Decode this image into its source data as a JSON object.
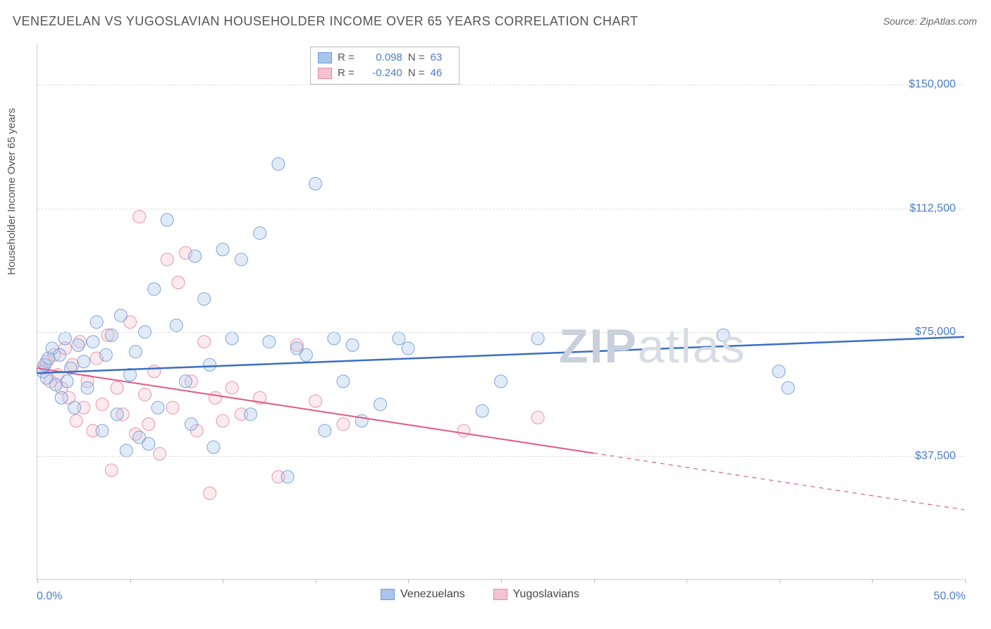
{
  "title": "VENEZUELAN VS YUGOSLAVIAN HOUSEHOLDER INCOME OVER 65 YEARS CORRELATION CHART",
  "source_label": "Source: ZipAtlas.com",
  "y_axis_title": "Householder Income Over 65 years",
  "watermark_a": "ZIP",
  "watermark_b": "atlas",
  "chart": {
    "type": "scatter",
    "background_color": "#ffffff",
    "grid_color": "#dddddd",
    "axis_color": "#cccccc",
    "xlim": [
      0,
      50
    ],
    "ylim": [
      0,
      162500
    ],
    "x_tick_positions": [
      0,
      5,
      10,
      15,
      20,
      25,
      30,
      35,
      40,
      45,
      50
    ],
    "x_tick_labels_visible": {
      "0": "0.0%",
      "50": "50.0%"
    },
    "y_gridlines": [
      37500,
      75000,
      112500,
      150000
    ],
    "y_tick_labels": [
      "$37,500",
      "$75,000",
      "$112,500",
      "$150,000"
    ],
    "marker_radius": 9,
    "marker_fill_opacity": 0.35,
    "marker_stroke_opacity": 0.9,
    "y_tick_label_color": "#4a7ec9",
    "x_tick_label_color": "#4a7ec9",
    "axis_label_fontsize": 16,
    "title_fontsize": 18
  },
  "series": {
    "venezuelans": {
      "label": "Venezuelans",
      "color_fill": "#a9c5ea",
      "color_stroke": "#6f9cd8",
      "trend_color": "#3b6fc4",
      "trend_width": 2.5,
      "trend_dash_after_x": 50,
      "trend": {
        "x1": 0,
        "y1": 62500,
        "x2": 50,
        "y2": 73500
      },
      "R": "0.098",
      "N": "63",
      "points": [
        [
          0.3,
          63000
        ],
        [
          0.4,
          65000
        ],
        [
          0.5,
          61000
        ],
        [
          0.6,
          67000
        ],
        [
          0.8,
          70000
        ],
        [
          1.0,
          59000
        ],
        [
          1.2,
          68000
        ],
        [
          1.3,
          55000
        ],
        [
          1.5,
          73000
        ],
        [
          1.6,
          60000
        ],
        [
          1.8,
          64000
        ],
        [
          2.0,
          52000
        ],
        [
          2.2,
          71000
        ],
        [
          2.5,
          66000
        ],
        [
          2.7,
          58000
        ],
        [
          3.0,
          72000
        ],
        [
          3.2,
          78000
        ],
        [
          3.5,
          45000
        ],
        [
          3.7,
          68000
        ],
        [
          4.0,
          74000
        ],
        [
          4.3,
          50000
        ],
        [
          4.5,
          80000
        ],
        [
          4.8,
          39000
        ],
        [
          5.0,
          62000
        ],
        [
          5.3,
          69000
        ],
        [
          5.5,
          43000
        ],
        [
          5.8,
          75000
        ],
        [
          6.0,
          41000
        ],
        [
          6.3,
          88000
        ],
        [
          6.5,
          52000
        ],
        [
          7.0,
          109000
        ],
        [
          7.5,
          77000
        ],
        [
          8.0,
          60000
        ],
        [
          8.3,
          47000
        ],
        [
          8.5,
          98000
        ],
        [
          9.0,
          85000
        ],
        [
          9.3,
          65000
        ],
        [
          9.5,
          40000
        ],
        [
          10.0,
          100000
        ],
        [
          10.5,
          73000
        ],
        [
          11.0,
          97000
        ],
        [
          11.5,
          50000
        ],
        [
          12.0,
          105000
        ],
        [
          12.5,
          72000
        ],
        [
          13.0,
          126000
        ],
        [
          13.5,
          31000
        ],
        [
          14.0,
          70000
        ],
        [
          14.5,
          68000
        ],
        [
          15.0,
          120000
        ],
        [
          15.5,
          45000
        ],
        [
          16.0,
          73000
        ],
        [
          16.5,
          60000
        ],
        [
          17.0,
          71000
        ],
        [
          17.5,
          48000
        ],
        [
          18.5,
          53000
        ],
        [
          19.5,
          73000
        ],
        [
          20.0,
          70000
        ],
        [
          24.0,
          51000
        ],
        [
          25.0,
          60000
        ],
        [
          27.0,
          73000
        ],
        [
          37.0,
          74000
        ],
        [
          40.0,
          63000
        ],
        [
          40.5,
          58000
        ]
      ]
    },
    "yugoslavians": {
      "label": "Yugoslavians",
      "color_fill": "#f4c3cf",
      "color_stroke": "#e889a2",
      "trend_color": "#e05a85",
      "trend_width": 2,
      "trend_dash_after_x": 30,
      "trend": {
        "x1": 0,
        "y1": 64000,
        "x2": 50,
        "y2": 21000
      },
      "R": "-0.240",
      "N": "46",
      "points": [
        [
          0.3,
          64000
        ],
        [
          0.5,
          66000
        ],
        [
          0.7,
          60000
        ],
        [
          0.9,
          68000
        ],
        [
          1.1,
          62000
        ],
        [
          1.3,
          58000
        ],
        [
          1.5,
          70000
        ],
        [
          1.7,
          55000
        ],
        [
          1.9,
          65000
        ],
        [
          2.1,
          48000
        ],
        [
          2.3,
          72000
        ],
        [
          2.5,
          52000
        ],
        [
          2.7,
          60000
        ],
        [
          3.0,
          45000
        ],
        [
          3.2,
          67000
        ],
        [
          3.5,
          53000
        ],
        [
          3.8,
          74000
        ],
        [
          4.0,
          33000
        ],
        [
          4.3,
          58000
        ],
        [
          4.6,
          50000
        ],
        [
          5.0,
          78000
        ],
        [
          5.3,
          44000
        ],
        [
          5.5,
          110000
        ],
        [
          5.8,
          56000
        ],
        [
          6.0,
          47000
        ],
        [
          6.3,
          63000
        ],
        [
          6.6,
          38000
        ],
        [
          7.0,
          97000
        ],
        [
          7.3,
          52000
        ],
        [
          7.6,
          90000
        ],
        [
          8.0,
          99000
        ],
        [
          8.3,
          60000
        ],
        [
          8.6,
          45000
        ],
        [
          9.0,
          72000
        ],
        [
          9.3,
          26000
        ],
        [
          9.6,
          55000
        ],
        [
          10.0,
          48000
        ],
        [
          10.5,
          58000
        ],
        [
          11.0,
          50000
        ],
        [
          12.0,
          55000
        ],
        [
          13.0,
          31000
        ],
        [
          14.0,
          71000
        ],
        [
          15.0,
          54000
        ],
        [
          16.5,
          47000
        ],
        [
          23.0,
          45000
        ],
        [
          27.0,
          49000
        ]
      ]
    }
  },
  "legend_top": {
    "r_prefix": "R =",
    "n_prefix": "N ="
  }
}
